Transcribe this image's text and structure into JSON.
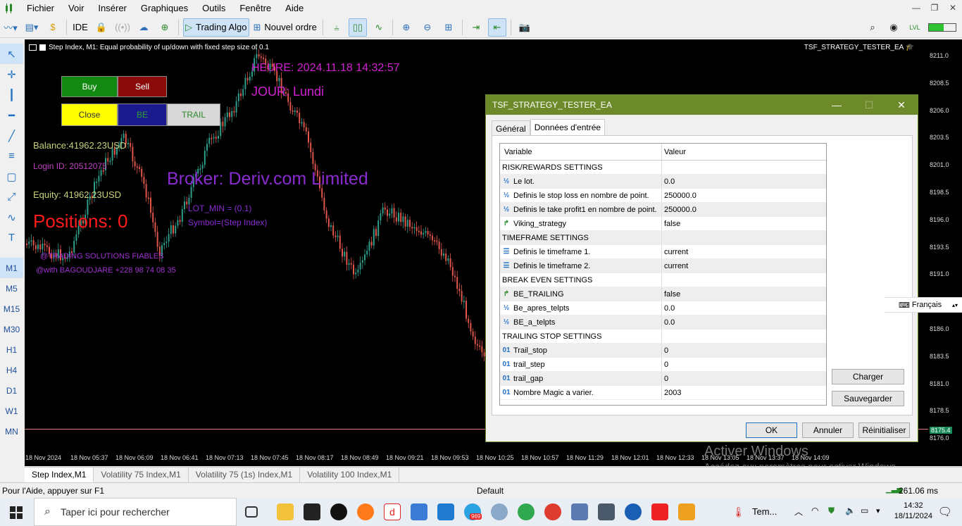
{
  "menu": [
    "Fichier",
    "Voir",
    "Insérer",
    "Graphiques",
    "Outils",
    "Fenêtre",
    "Aide"
  ],
  "toolbar": {
    "ide": "IDE",
    "trading_algo": "Trading Algo",
    "new_order": "Nouvel ordre"
  },
  "timeframes": [
    "M1",
    "M5",
    "M15",
    "M30",
    "H1",
    "H4",
    "D1",
    "W1",
    "MN"
  ],
  "chart": {
    "title": "Step Index, M1:  Equal probability of up/down with fixed step size of 0.1",
    "ea_name": "TSF_STRATEGY_TESTER_EA",
    "price_labels": [
      "8211.0",
      "8208.5",
      "8206.0",
      "8203.5",
      "8201.0",
      "8198.5",
      "8196.0",
      "8193.5",
      "8191.0",
      "8188.5",
      "8186.0",
      "8183.5",
      "8181.0",
      "8178.5",
      "8176.0"
    ],
    "current_price": "8175.4",
    "time_labels": [
      "18 Nov 2024",
      "18 Nov 05:37",
      "18 Nov 06:09",
      "18 Nov 06:41",
      "18 Nov 07:13",
      "18 Nov 07:45",
      "18 Nov 08:17",
      "18 Nov 08:49",
      "18 Nov 09:21",
      "18 Nov 09:53",
      "18 Nov 10:25",
      "18 Nov 10:57",
      "18 Nov 11:29",
      "18 Nov 12:01",
      "18 Nov 12:33",
      "18 Nov 13:05",
      "18 Nov 13:37",
      "18 Nov 14:09"
    ]
  },
  "overlay": {
    "buy": "Buy",
    "sell": "Sell",
    "close": "Close",
    "be": "BE",
    "trail": "TRAIL",
    "heure": "HEURE: 2024.11.18 14:32:57",
    "jour": "JOUR: Lundi",
    "balance": "Balance:41962.23USD",
    "login": "Login ID: 20512075",
    "equity": "Equity: 41962.23USD",
    "positions": "Positions: 0",
    "broker": "Broker: Deriv.com Limited",
    "lot_min": "LOT_MIN = (0.1)",
    "symbol": "Symbol=(Step Index)",
    "sig1": "@TRADING SOLUTIONS FIABLES",
    "sig2": "@with BAGOUDJARE +228 98 74 08 35"
  },
  "colors": {
    "up": "#2e9d8a",
    "down": "#e0564a",
    "accent": "#6d8a2a"
  },
  "dialog": {
    "title": "TSF_STRATEGY_TESTER_EA",
    "tabs": [
      "Général",
      "Données d'entrée"
    ],
    "col_variable": "Variable",
    "col_value": "Valeur",
    "rows": [
      {
        "type": "sec",
        "name": "RISK/REWARDS SETTINGS",
        "value": ""
      },
      {
        "type": "num",
        "name": "Le lot.",
        "value": "0.0"
      },
      {
        "type": "num",
        "name": "Definis le stop loss en nombre de point.",
        "value": "250000.0"
      },
      {
        "type": "num",
        "name": "Definis le take profit1 en nombre de point.",
        "value": "250000.0"
      },
      {
        "type": "bool",
        "name": "Viking_strategy",
        "value": "false"
      },
      {
        "type": "sec",
        "name": "TIMEFRAME SETTINGS",
        "value": ""
      },
      {
        "type": "enum",
        "name": "Definis le timeframe 1.",
        "value": "current"
      },
      {
        "type": "enum",
        "name": "Definis le timeframe 2.",
        "value": "current"
      },
      {
        "type": "sec",
        "name": "BREAK EVEN SETTINGS",
        "value": ""
      },
      {
        "type": "bool",
        "name": "BE_TRAILING",
        "value": "false"
      },
      {
        "type": "num",
        "name": "Be_apres_telpts",
        "value": "0.0"
      },
      {
        "type": "num",
        "name": "BE_a_telpts",
        "value": "0.0"
      },
      {
        "type": "sec",
        "name": "TRAILING STOP SETTINGS",
        "value": ""
      },
      {
        "type": "int",
        "name": "Trail_stop",
        "value": "0"
      },
      {
        "type": "int",
        "name": "trail_step",
        "value": "0"
      },
      {
        "type": "int",
        "name": "trail_gap",
        "value": "0"
      },
      {
        "type": "int",
        "name": "Nombre Magic a varier.",
        "value": "2003"
      }
    ],
    "charger": "Charger",
    "sauvegarder": "Sauvegarder",
    "ok": "OK",
    "annuler": "Annuler",
    "reinit": "Réinitialiser"
  },
  "language": "Français",
  "chart_tabs": [
    "Step Index,M1",
    "Volatility 75 Index,M1",
    "Volatility 75 (1s) Index,M1",
    "Volatility 100 Index,M1"
  ],
  "status": {
    "help": "Pour l'Aide, appuyer sur F1",
    "profile": "Default",
    "ping": "261.06 ms"
  },
  "watermark": {
    "line1": "Activer Windows",
    "line2": "Accédez aux paramètres pour activer Windows."
  },
  "taskbar": {
    "search": "Taper ici pour rechercher",
    "weather": "Tem...",
    "time": "14:32",
    "date": "18/11/2024",
    "badge": "969"
  }
}
